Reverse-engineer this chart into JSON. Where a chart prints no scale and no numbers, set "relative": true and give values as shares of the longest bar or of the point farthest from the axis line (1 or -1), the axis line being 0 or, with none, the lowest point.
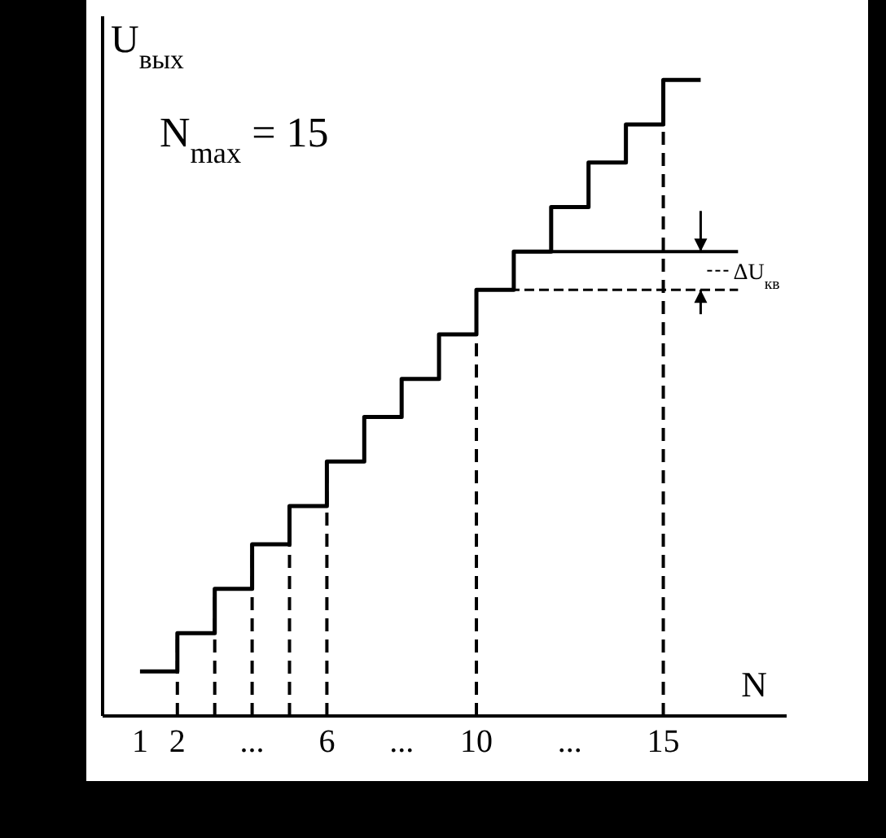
{
  "chart_data": {
    "type": "step",
    "relative": true,
    "ylabel": "U$_{вых}$",
    "xlabel": "N",
    "x": [
      1,
      2,
      3,
      4,
      5,
      6,
      7,
      8,
      9,
      10,
      11,
      12,
      13,
      14,
      15,
      16
    ],
    "series": [
      {
        "color": "#000000",
        "values": [
          0.07,
          0.13,
          0.2,
          0.27,
          0.33,
          0.4,
          0.47,
          0.53,
          0.6,
          0.67,
          0.73,
          0.8,
          0.87,
          0.93,
          1,
          1
        ]
      }
    ],
    "xlim": [
      0,
      18.3
    ],
    "xticks": [
      1,
      2,
      {
        "value": 4,
        "label": "..."
      },
      6,
      {
        "value": 8,
        "label": "..."
      },
      10,
      {
        "value": 12.5,
        "label": "..."
      },
      15
    ],
    "ref_lines": [
      {
        "axis": "x",
        "value": 2,
        "line_style": "dashed",
        "color": "#000000"
      },
      {
        "axis": "x",
        "value": 3,
        "line_style": "dashed",
        "color": "#000000"
      },
      {
        "axis": "x",
        "value": 4,
        "line_style": "dashed",
        "color": "#000000"
      },
      {
        "axis": "x",
        "value": 5,
        "line_style": "dashed",
        "color": "#000000"
      },
      {
        "axis": "x",
        "value": 6,
        "line_style": "dashed",
        "color": "#000000"
      },
      {
        "axis": "x",
        "value": 10,
        "line_style": "dashed",
        "color": "#000000"
      },
      {
        "axis": "x",
        "value": 15,
        "line_style": "dashed",
        "color": "#000000"
      }
    ],
    "annotations": [
      "N$_{max}$ = 15",
      "ΔU$_{кв}$"
    ],
    "grid": false,
    "legend": false,
    "marker": "none",
    "line_style": "solid"
  }
}
